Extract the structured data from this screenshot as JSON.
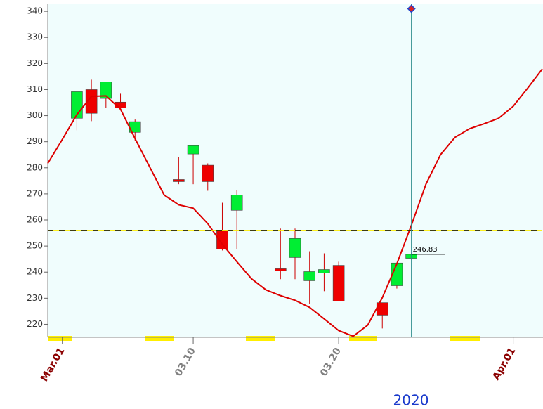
{
  "chart_data": {
    "type": "candlestick",
    "x": [
      2,
      3,
      4,
      5,
      6,
      9,
      10,
      11,
      12,
      13,
      16,
      17,
      18,
      19,
      20,
      23,
      24,
      25
    ],
    "open": [
      299,
      310,
      306.6,
      305.2,
      293.6,
      275.5,
      285.3,
      281,
      256.1,
      263.7,
      241.3,
      245.6,
      236.7,
      239.7,
      242.6,
      228.3,
      234.8,
      245.3
    ],
    "high": [
      309.2,
      313.8,
      313,
      308.4,
      298.5,
      284,
      288.5,
      281.7,
      266.6,
      271.5,
      256.7,
      256.7,
      248,
      247.2,
      244,
      228.3,
      243.5,
      247.2
    ],
    "low": [
      294.4,
      297.9,
      303,
      302.5,
      290.4,
      273.7,
      273.7,
      271.2,
      248.3,
      248.8,
      237.3,
      237.3,
      227.8,
      232.7,
      228.9,
      218.4,
      233.7,
      245.3
    ],
    "close": [
      309.2,
      300.9,
      313,
      303,
      297.7,
      274.7,
      288.5,
      274.7,
      248.8,
      269.6,
      240.5,
      252.9,
      240.2,
      241,
      228.9,
      223.5,
      243.5,
      246.83
    ],
    "last_price_label": "246.83",
    "up_color": "#00ee33",
    "down_color": "#ee0000",
    "wick_color": "#cc0000",
    "ma": {
      "color": "#dd0000",
      "x": [
        0,
        1,
        2,
        3,
        4,
        5,
        6,
        7,
        8,
        9,
        10,
        11,
        12,
        13,
        14,
        15,
        16,
        17,
        18,
        19,
        20,
        21,
        22,
        23,
        24,
        25,
        26,
        27,
        28,
        29,
        30,
        31,
        32,
        33,
        34
      ],
      "values": [
        281.7,
        290.9,
        300.4,
        307.4,
        307.6,
        302.5,
        291.2,
        280.4,
        269.6,
        265.8,
        264.5,
        258.6,
        250.7,
        244,
        237.5,
        233.2,
        231,
        229.2,
        226.5,
        222.1,
        217.6,
        215.4,
        219.7,
        230.2,
        243.2,
        258,
        273.7,
        285,
        291.7,
        295,
        296.9,
        299,
        303.6,
        310.6,
        317.9
      ]
    },
    "hline": {
      "value": 256
    },
    "vline": {
      "x": 25,
      "marker_value": 341,
      "color": "#2a8a8a"
    },
    "xlim": [
      0,
      34
    ],
    "xticks": [
      {
        "value": 1,
        "label": "Mar.01"
      },
      {
        "value": 10,
        "label": "03.10"
      },
      {
        "value": 20,
        "label": "03.20"
      },
      {
        "value": 32,
        "label": "Apr.01"
      }
    ],
    "xtick_colors": [
      "#8b0000",
      "#808080",
      "#808080",
      "#8b0000"
    ],
    "xlabel": "2020",
    "ylim": [
      215,
      343
    ],
    "yticks": [
      220,
      230,
      240,
      250,
      260,
      270,
      280,
      290,
      300,
      310,
      320,
      330,
      340
    ],
    "grid": false
  }
}
